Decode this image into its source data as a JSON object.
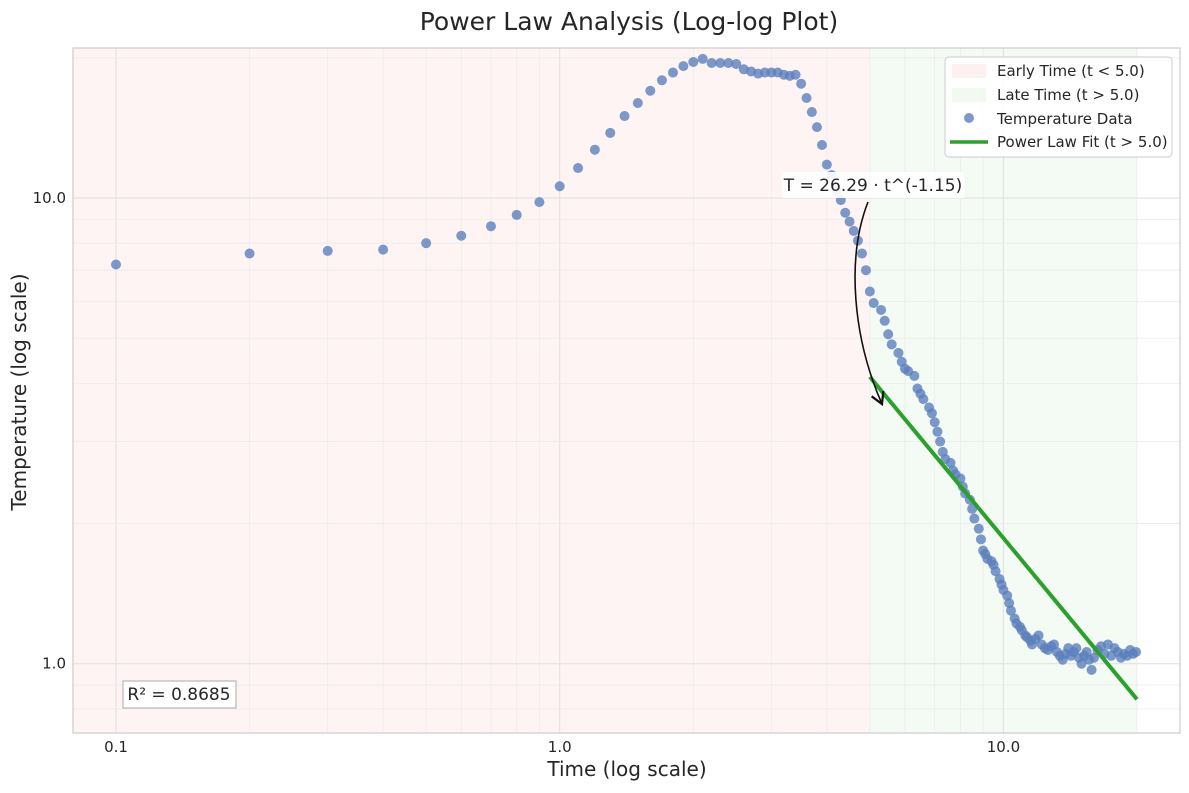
{
  "chart_data": {
    "type": "scatter",
    "title": "Power Law Analysis (Log-log Plot)",
    "xlabel": "Time (log scale)",
    "ylabel": "Temperature (log scale)",
    "x_scale": "log",
    "y_scale": "log",
    "xlim": [
      0.08,
      25
    ],
    "ylim": [
      0.71,
      21.0
    ],
    "x_ticks": [
      {
        "value": 0.1,
        "label": "0.1"
      },
      {
        "value": 1.0,
        "label": "1.0"
      },
      {
        "value": 10.0,
        "label": "10.0"
      }
    ],
    "y_ticks": [
      {
        "value": 1.0,
        "label": "1.0"
      },
      {
        "value": 10.0,
        "label": "10.0"
      }
    ],
    "grid": true,
    "legend_position": "top-right",
    "regions": [
      {
        "name": "Early Time (t < 5.0)",
        "x_range": [
          0.08,
          5.0
        ],
        "color": "#f4a3a3"
      },
      {
        "name": "Late Time (t > 5.0)",
        "x_range": [
          5.0,
          20.0
        ],
        "color": "#a8d5a2"
      }
    ],
    "series": [
      {
        "name": "Temperature Data",
        "kind": "scatter",
        "color": "#5b7fbd",
        "points": [
          [
            0.1,
            7.2
          ],
          [
            0.2,
            7.6
          ],
          [
            0.3,
            7.7
          ],
          [
            0.4,
            7.75
          ],
          [
            0.5,
            8.0
          ],
          [
            0.6,
            8.3
          ],
          [
            0.7,
            8.7
          ],
          [
            0.8,
            9.2
          ],
          [
            0.9,
            9.8
          ],
          [
            1.0,
            10.6
          ],
          [
            1.1,
            11.6
          ],
          [
            1.2,
            12.7
          ],
          [
            1.3,
            13.8
          ],
          [
            1.4,
            15.0
          ],
          [
            1.5,
            16.0
          ],
          [
            1.6,
            17.0
          ],
          [
            1.7,
            17.9
          ],
          [
            1.8,
            18.6
          ],
          [
            1.9,
            19.2
          ],
          [
            2.0,
            19.6
          ],
          [
            2.1,
            19.9
          ],
          [
            2.2,
            19.5
          ],
          [
            2.3,
            19.5
          ],
          [
            2.4,
            19.5
          ],
          [
            2.5,
            19.4
          ],
          [
            2.6,
            18.9
          ],
          [
            2.7,
            18.7
          ],
          [
            2.8,
            18.5
          ],
          [
            2.9,
            18.6
          ],
          [
            3.0,
            18.6
          ],
          [
            3.1,
            18.6
          ],
          [
            3.2,
            18.4
          ],
          [
            3.3,
            18.3
          ],
          [
            3.4,
            18.4
          ],
          [
            3.5,
            17.6
          ],
          [
            3.6,
            16.4
          ],
          [
            3.7,
            15.3
          ],
          [
            3.8,
            14.2
          ],
          [
            3.9,
            13.0
          ],
          [
            4.0,
            11.8
          ],
          [
            4.1,
            11.2
          ],
          [
            4.2,
            10.4
          ],
          [
            4.3,
            9.9
          ],
          [
            4.4,
            9.3
          ],
          [
            4.5,
            8.9
          ],
          [
            4.6,
            8.5
          ],
          [
            4.7,
            8.1
          ],
          [
            4.8,
            7.6
          ],
          [
            4.9,
            7.0
          ],
          [
            5.0,
            6.3
          ],
          [
            5.1,
            5.95
          ],
          [
            5.3,
            5.75
          ],
          [
            5.4,
            5.45
          ],
          [
            5.5,
            5.1
          ],
          [
            5.6,
            4.85
          ],
          [
            5.8,
            4.65
          ],
          [
            5.9,
            4.45
          ],
          [
            6.0,
            4.3
          ],
          [
            6.1,
            4.25
          ],
          [
            6.3,
            4.15
          ],
          [
            6.4,
            3.9
          ],
          [
            6.5,
            3.8
          ],
          [
            6.6,
            3.7
          ],
          [
            6.8,
            3.55
          ],
          [
            6.9,
            3.45
          ],
          [
            7.0,
            3.3
          ],
          [
            7.1,
            3.15
          ],
          [
            7.2,
            3.0
          ],
          [
            7.3,
            2.85
          ],
          [
            7.4,
            2.75
          ],
          [
            7.6,
            2.7
          ],
          [
            7.7,
            2.6
          ],
          [
            7.8,
            2.55
          ],
          [
            8.0,
            2.5
          ],
          [
            8.1,
            2.4
          ],
          [
            8.2,
            2.32
          ],
          [
            8.4,
            2.25
          ],
          [
            8.5,
            2.15
          ],
          [
            8.6,
            2.05
          ],
          [
            8.8,
            1.95
          ],
          [
            8.9,
            1.85
          ],
          [
            9.0,
            1.75
          ],
          [
            9.1,
            1.72
          ],
          [
            9.2,
            1.68
          ],
          [
            9.4,
            1.66
          ],
          [
            9.5,
            1.63
          ],
          [
            9.6,
            1.58
          ],
          [
            9.8,
            1.52
          ],
          [
            9.9,
            1.48
          ],
          [
            10.0,
            1.44
          ],
          [
            10.2,
            1.4
          ],
          [
            10.3,
            1.35
          ],
          [
            10.4,
            1.3
          ],
          [
            10.6,
            1.25
          ],
          [
            10.7,
            1.22
          ],
          [
            10.9,
            1.2
          ],
          [
            11.0,
            1.18
          ],
          [
            11.2,
            1.15
          ],
          [
            11.3,
            1.14
          ],
          [
            11.5,
            1.12
          ],
          [
            11.6,
            1.1
          ],
          [
            11.8,
            1.13
          ],
          [
            12.0,
            1.15
          ],
          [
            12.2,
            1.1
          ],
          [
            12.4,
            1.08
          ],
          [
            12.6,
            1.07
          ],
          [
            12.8,
            1.09
          ],
          [
            13.0,
            1.1
          ],
          [
            13.2,
            1.06
          ],
          [
            13.4,
            1.04
          ],
          [
            13.6,
            1.02
          ],
          [
            13.8,
            1.05
          ],
          [
            14.0,
            1.08
          ],
          [
            14.2,
            1.04
          ],
          [
            14.4,
            1.06
          ],
          [
            14.6,
            1.08
          ],
          [
            14.8,
            1.03
          ],
          [
            15.0,
            1.0
          ],
          [
            15.2,
            1.04
          ],
          [
            15.4,
            1.06
          ],
          [
            15.6,
            1.02
          ],
          [
            15.8,
            0.97
          ],
          [
            16.0,
            1.03
          ],
          [
            16.3,
            1.07
          ],
          [
            16.6,
            1.09
          ],
          [
            16.9,
            1.05
          ],
          [
            17.2,
            1.1
          ],
          [
            17.5,
            1.04
          ],
          [
            17.8,
            1.08
          ],
          [
            18.1,
            1.06
          ],
          [
            18.4,
            1.03
          ],
          [
            18.7,
            1.05
          ],
          [
            19.0,
            1.04
          ],
          [
            19.3,
            1.07
          ],
          [
            19.6,
            1.05
          ],
          [
            19.9,
            1.06
          ]
        ]
      },
      {
        "name": "Power Law Fit (t > 5.0)",
        "kind": "line",
        "color": "#2ca02c",
        "coefficient": 26.29,
        "exponent": -1.15,
        "x_range": [
          5.0,
          20.0
        ]
      }
    ],
    "annotations": {
      "equation": "T = 26.29 · t^(-1.15)",
      "r_squared": "R² = 0.8685"
    }
  }
}
